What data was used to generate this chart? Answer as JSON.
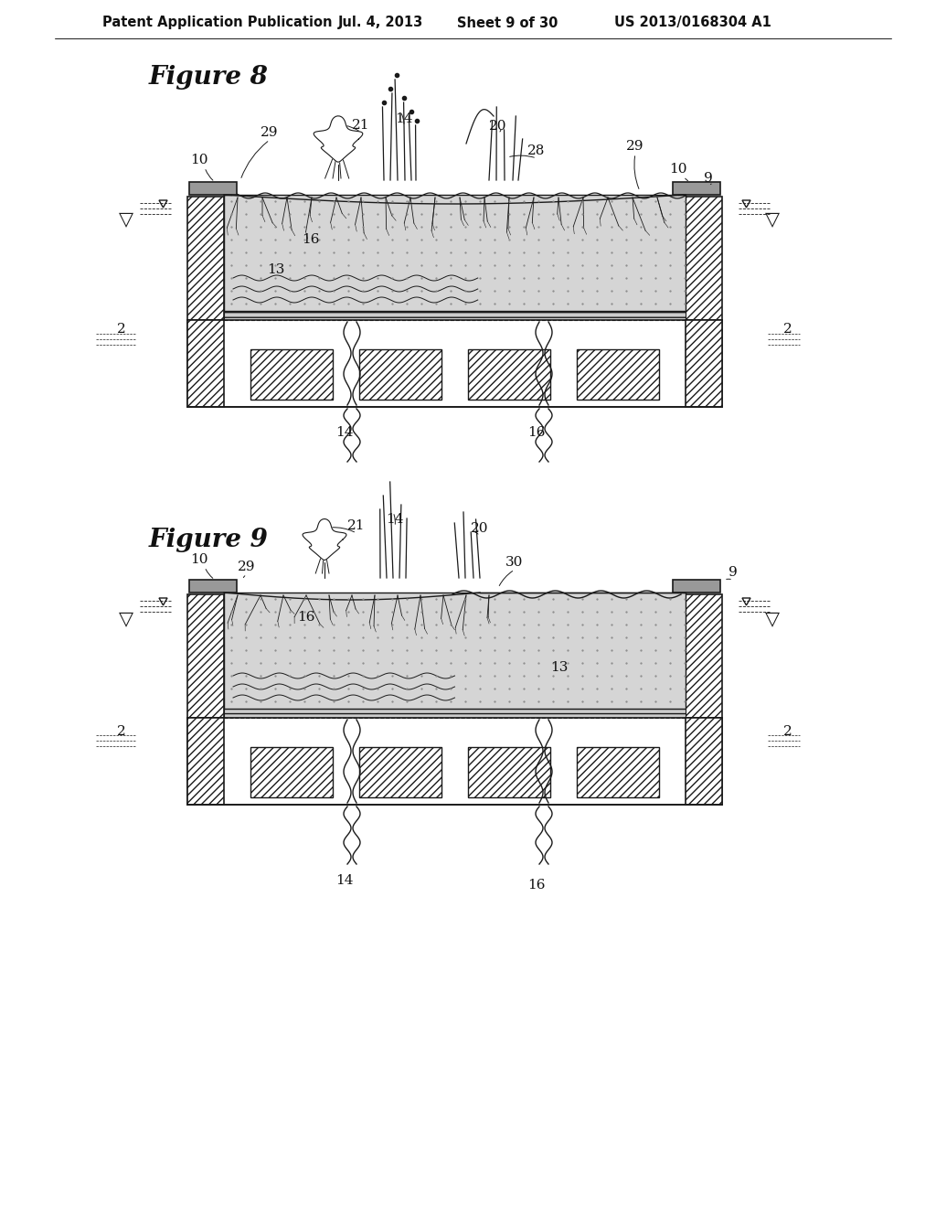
{
  "background_color": "#ffffff",
  "header_text": "Patent Application Publication",
  "header_date": "Jul. 4, 2013",
  "header_sheet": "Sheet 9 of 30",
  "header_patent": "US 2013/0168304 A1",
  "fig8_title": "Figure 8",
  "fig9_title": "Figure 9",
  "line_color": "#1a1a1a",
  "text_color": "#111111",
  "hatch_wall": "////",
  "hatch_block": "////",
  "med_fc": "#d8d8d8",
  "wall_fc": "#ffffff",
  "cap_fc": "#999999"
}
